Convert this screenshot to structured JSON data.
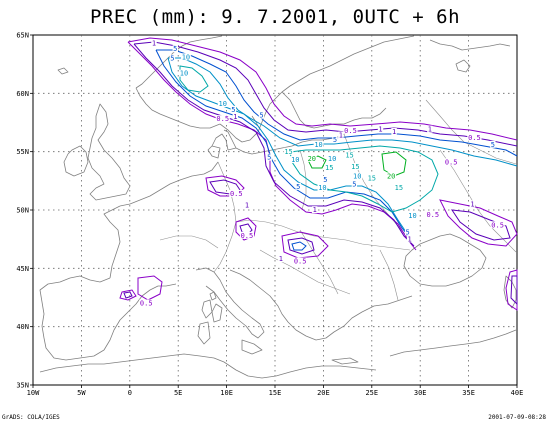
{
  "title": "PREC (mm):  9. 7.2001,  0UTC +  6h",
  "footer": {
    "left": "GrADS: COLA/IGES",
    "right": "2001-07-09-08:28"
  },
  "axes": {
    "x_ticks": [
      {
        "lon": -10,
        "label": "10W"
      },
      {
        "lon": -5,
        "label": "5W"
      },
      {
        "lon": 0,
        "label": "0"
      },
      {
        "lon": 5,
        "label": "5E"
      },
      {
        "lon": 10,
        "label": "10E"
      },
      {
        "lon": 15,
        "label": "15E"
      },
      {
        "lon": 20,
        "label": "20E"
      },
      {
        "lon": 25,
        "label": "25E"
      },
      {
        "lon": 30,
        "label": "30E"
      },
      {
        "lon": 35,
        "label": "35E"
      },
      {
        "lon": 40,
        "label": "40E"
      }
    ],
    "y_ticks": [
      {
        "lat": 35,
        "label": "35N"
      },
      {
        "lat": 40,
        "label": "40N"
      },
      {
        "lat": 45,
        "label": "45N"
      },
      {
        "lat": 50,
        "label": "50N"
      },
      {
        "lat": 55,
        "label": "55N"
      },
      {
        "lat": 60,
        "label": "60N"
      },
      {
        "lat": 65,
        "label": "65N"
      }
    ]
  },
  "contour_levels": [
    {
      "value": "0.5",
      "color": "#8a00c8"
    },
    {
      "value": "1",
      "color": "#5a00b8"
    },
    {
      "value": "5",
      "color": "#0050d0"
    },
    {
      "value": "10",
      "color": "#0090c8"
    },
    {
      "value": "15",
      "color": "#00a8a8"
    },
    {
      "value": "20",
      "color": "#00b020"
    }
  ],
  "contour_labels": [
    {
      "text": "1",
      "lon": 2.5,
      "lat": 64.2,
      "color": "#5a00b8"
    },
    {
      "text": "5",
      "lon": 4.7,
      "lat": 63.7,
      "color": "#0050d0"
    },
    {
      "text": "10",
      "lon": 5.8,
      "lat": 63.0,
      "color": "#0090c8"
    },
    {
      "text": "5",
      "lon": 4.4,
      "lat": 62.9,
      "color": "#0050d0"
    },
    {
      "text": "10",
      "lon": 5.6,
      "lat": 61.6,
      "color": "#0090c8"
    },
    {
      "text": "10",
      "lon": 9.6,
      "lat": 59.0,
      "color": "#0090c8"
    },
    {
      "text": "5",
      "lon": 10.7,
      "lat": 58.5,
      "color": "#0050d0"
    },
    {
      "text": "1",
      "lon": 10.9,
      "lat": 57.9,
      "color": "#5a00b8"
    },
    {
      "text": "0.5",
      "lon": 9.6,
      "lat": 57.7,
      "color": "#8a00c8"
    },
    {
      "text": "5",
      "lon": 13.6,
      "lat": 58.0,
      "color": "#0050d0"
    },
    {
      "text": "10",
      "lon": 19.5,
      "lat": 55.5,
      "color": "#0090c8"
    },
    {
      "text": "5",
      "lon": 21.2,
      "lat": 55.9,
      "color": "#0050d0"
    },
    {
      "text": "1",
      "lon": 21.8,
      "lat": 56.3,
      "color": "#5a00b8"
    },
    {
      "text": "0.5",
      "lon": 22.8,
      "lat": 56.7,
      "color": "#8a00c8"
    },
    {
      "text": "1",
      "lon": 25.9,
      "lat": 56.8,
      "color": "#5a00b8"
    },
    {
      "text": "1",
      "lon": 27.3,
      "lat": 56.6,
      "color": "#5a00b8"
    },
    {
      "text": "1",
      "lon": 31.0,
      "lat": 56.8,
      "color": "#5a00b8"
    },
    {
      "text": "0.5",
      "lon": 35.6,
      "lat": 56.1,
      "color": "#8a00c8"
    },
    {
      "text": "5",
      "lon": 37.5,
      "lat": 55.5,
      "color": "#0050d0"
    },
    {
      "text": "0.5",
      "lon": 33.2,
      "lat": 54.0,
      "color": "#8a00c8"
    },
    {
      "text": "5",
      "lon": 14.4,
      "lat": 54.4,
      "color": "#0050d0"
    },
    {
      "text": "15",
      "lon": 16.4,
      "lat": 54.9,
      "color": "#00a8a8"
    },
    {
      "text": "10",
      "lon": 17.1,
      "lat": 54.2,
      "color": "#0090c8"
    },
    {
      "text": "20",
      "lon": 18.8,
      "lat": 54.3,
      "color": "#00b020"
    },
    {
      "text": "10",
      "lon": 20.9,
      "lat": 54.3,
      "color": "#0090c8"
    },
    {
      "text": "15",
      "lon": 20.6,
      "lat": 53.5,
      "color": "#00a8a8"
    },
    {
      "text": "15",
      "lon": 22.7,
      "lat": 54.6,
      "color": "#00a8a8"
    },
    {
      "text": "15",
      "lon": 23.3,
      "lat": 53.6,
      "color": "#00a8a8"
    },
    {
      "text": "10",
      "lon": 23.5,
      "lat": 52.8,
      "color": "#0090c8"
    },
    {
      "text": "5",
      "lon": 23.2,
      "lat": 52.1,
      "color": "#0050d0"
    },
    {
      "text": "5",
      "lon": 20.2,
      "lat": 52.5,
      "color": "#0050d0"
    },
    {
      "text": "10",
      "lon": 19.9,
      "lat": 51.8,
      "color": "#0090c8"
    },
    {
      "text": "5",
      "lon": 17.4,
      "lat": 51.9,
      "color": "#0050d0"
    },
    {
      "text": "1",
      "lon": 19.1,
      "lat": 49.9,
      "color": "#5a00b8"
    },
    {
      "text": "20",
      "lon": 27.0,
      "lat": 52.8,
      "color": "#00b020"
    },
    {
      "text": "15",
      "lon": 27.8,
      "lat": 51.8,
      "color": "#00a8a8"
    },
    {
      "text": "15",
      "lon": 25.0,
      "lat": 52.6,
      "color": "#00a8a8"
    },
    {
      "text": "10",
      "lon": 29.2,
      "lat": 49.4,
      "color": "#0090c8"
    },
    {
      "text": "5",
      "lon": 28.7,
      "lat": 48.0,
      "color": "#0050d0"
    },
    {
      "text": "1",
      "lon": 28.9,
      "lat": 47.4,
      "color": "#5a00b8"
    },
    {
      "text": "0.5",
      "lon": 31.3,
      "lat": 49.5,
      "color": "#8a00c8"
    },
    {
      "text": "1",
      "lon": 35.4,
      "lat": 50.4,
      "color": "#5a00b8"
    },
    {
      "text": "0.5",
      "lon": 38.0,
      "lat": 48.6,
      "color": "#8a00c8"
    },
    {
      "text": "0.5",
      "lon": 11.0,
      "lat": 51.3,
      "color": "#8a00c8"
    },
    {
      "text": "1",
      "lon": 12.1,
      "lat": 50.3,
      "color": "#5a00b8"
    },
    {
      "text": "0.5",
      "lon": 12.1,
      "lat": 47.7,
      "color": "#8a00c8"
    },
    {
      "text": "1",
      "lon": 15.6,
      "lat": 45.7,
      "color": "#5a00b8"
    },
    {
      "text": "0.5",
      "lon": 17.6,
      "lat": 45.5,
      "color": "#8a00c8"
    },
    {
      "text": "0.5",
      "lon": 1.7,
      "lat": 41.9,
      "color": "#8a00c8"
    }
  ]
}
